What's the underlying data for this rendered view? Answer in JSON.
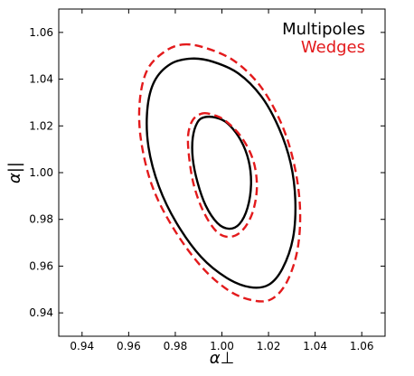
{
  "chart_data": {
    "type": "contour",
    "x_label": "α⊥",
    "y_label": "α||",
    "xlim": [
      0.93,
      1.07
    ],
    "ylim": [
      0.93,
      1.07
    ],
    "x_ticks": [
      "0.94",
      "0.96",
      "0.98",
      "1.00",
      "1.02",
      "1.04",
      "1.06"
    ],
    "x_tick_values": [
      0.94,
      0.96,
      0.98,
      1.0,
      1.02,
      1.04,
      1.06
    ],
    "y_ticks": [
      "0.94",
      "0.96",
      "0.98",
      "1.00",
      "1.02",
      "1.04",
      "1.06"
    ],
    "y_tick_values": [
      0.94,
      0.96,
      0.98,
      1.0,
      1.02,
      1.04,
      1.06
    ],
    "grid": false,
    "legend_position": "top-right",
    "series": [
      {
        "name": "Multipoles",
        "color": "#000000",
        "line_style": "solid",
        "contours": [
          {
            "level": "inner",
            "points": [
              [
                0.9925,
                1.0237
              ],
              [
                0.9975,
                1.0235
              ],
              [
                1.0025,
                1.021
              ],
              [
                1.008,
                1.014
              ],
              [
                1.0115,
                1.005
              ],
              [
                1.0125,
                0.995
              ],
              [
                1.011,
                0.985
              ],
              [
                1.0075,
                0.978
              ],
              [
                1.003,
                0.976
              ],
              [
                0.998,
                0.9785
              ],
              [
                0.993,
                0.986
              ],
              [
                0.9895,
                0.996
              ],
              [
                0.9875,
                1.006
              ],
              [
                0.9875,
                1.015
              ],
              [
                0.9895,
                1.0215
              ]
            ]
          },
          {
            "level": "outer",
            "points": [
              [
                0.987,
                1.0488
              ],
              [
                0.996,
                1.0475
              ],
              [
                1.007,
                1.0425
              ],
              [
                1.017,
                1.0325
              ],
              [
                1.0245,
                1.019
              ],
              [
                1.0295,
                1.004
              ],
              [
                1.0315,
                0.988
              ],
              [
                1.0305,
                0.972
              ],
              [
                1.026,
                0.959
              ],
              [
                1.02,
                0.952
              ],
              [
                1.012,
                0.951
              ],
              [
                1.002,
                0.955
              ],
              [
                0.991,
                0.964
              ],
              [
                0.9805,
                0.9785
              ],
              [
                0.973,
                0.994
              ],
              [
                0.9685,
                1.011
              ],
              [
                0.968,
                1.027
              ],
              [
                0.971,
                1.039
              ],
              [
                0.978,
                1.0465
              ]
            ]
          }
        ]
      },
      {
        "name": "Wedges",
        "color": "#e31a1c",
        "line_style": "dashed",
        "contours": [
          {
            "level": "inner",
            "points": [
              [
                0.9915,
                1.0253
              ],
              [
                0.996,
                1.0248
              ],
              [
                1.0015,
                1.0222
              ],
              [
                1.0085,
                1.015
              ],
              [
                1.0135,
                1.005
              ],
              [
                1.015,
                0.9935
              ],
              [
                1.013,
                0.9825
              ],
              [
                1.0085,
                0.975
              ],
              [
                1.003,
                0.9725
              ],
              [
                0.9975,
                0.975
              ],
              [
                0.992,
                0.9835
              ],
              [
                0.988,
                0.9945
              ],
              [
                0.986,
                1.006
              ],
              [
                0.9855,
                1.016
              ],
              [
                0.9875,
                1.0225
              ]
            ]
          },
          {
            "level": "outer",
            "points": [
              [
                0.983,
                1.0548
              ],
              [
                0.9925,
                1.0535
              ],
              [
                1.005,
                1.048
              ],
              [
                1.0165,
                1.037
              ],
              [
                1.0255,
                1.021
              ],
              [
                1.031,
                1.0035
              ],
              [
                1.0335,
                0.985
              ],
              [
                1.0325,
                0.9675
              ],
              [
                1.028,
                0.9535
              ],
              [
                1.0215,
                0.946
              ],
              [
                1.0135,
                0.9453
              ],
              [
                1.003,
                0.9495
              ],
              [
                0.991,
                0.96
              ],
              [
                0.979,
                0.9765
              ],
              [
                0.97,
                0.9945
              ],
              [
                0.9652,
                1.0145
              ],
              [
                0.9648,
                1.031
              ],
              [
                0.968,
                1.044
              ],
              [
                0.975,
                1.0515
              ]
            ]
          }
        ]
      }
    ]
  }
}
